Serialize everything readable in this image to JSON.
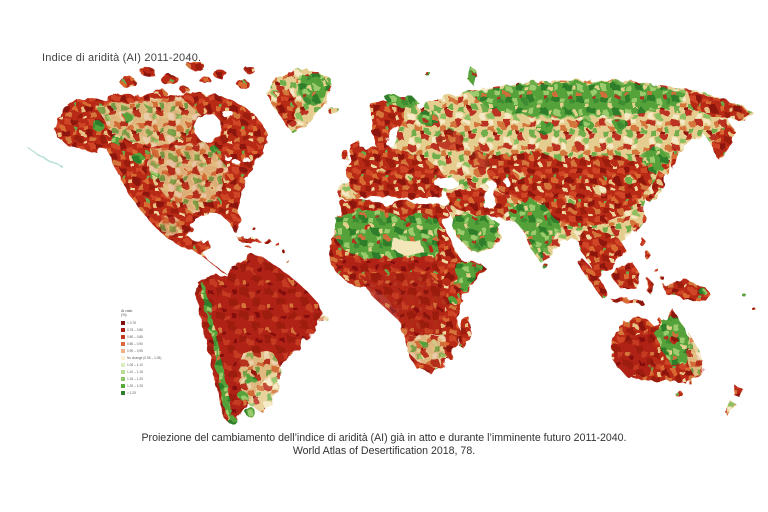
{
  "title": "Indice di aridità (AI) 2011-2040.",
  "caption": {
    "line1": "Proiezione del cambiamento dell’indice di aridità (AI) già in atto e durante l’imminente futuro 2011-2040.",
    "line2": "World Atlas of Desertification 2018, 78."
  },
  "legend": {
    "title_line1": "AI ratio",
    "title_line2": "(%)",
    "items": [
      {
        "label": "< 0.75",
        "color": "#7d120d"
      },
      {
        "label": "0.75 – 0.80",
        "color": "#a81c13"
      },
      {
        "label": "0.80 – 0.85",
        "color": "#c23a22"
      },
      {
        "label": "0.85 – 0.90",
        "color": "#dd6a3e"
      },
      {
        "label": "0.90 – 0.95",
        "color": "#efb183"
      },
      {
        "label": "No change (0.95 – 1.05)",
        "color": "#f8f0d2"
      },
      {
        "label": "1.05 – 1.10",
        "color": "#dcedc2"
      },
      {
        "label": "1.10 – 1.15",
        "color": "#b5dc8e"
      },
      {
        "label": "1.15 – 1.20",
        "color": "#8cc763"
      },
      {
        "label": "1.20 – 1.25",
        "color": "#5aaa3f"
      },
      {
        "label": "> 1.25",
        "color": "#2f7d2b"
      }
    ]
  },
  "map": {
    "type": "world-choropleth",
    "theme": "projected change in aridity index (red = drier, green = wetter)",
    "ocean_color": "#ffffff",
    "palette": {
      "dark_red": "#8c150c",
      "red": "#b92a17",
      "orange": "#d96a33",
      "tan": "#e5cd8f",
      "pale": "#f6eccb",
      "light_green": "#9ccb6e",
      "green": "#55a23a",
      "dark_green": "#2f7d2c"
    },
    "regions": [
      {
        "name": "north-america",
        "appearance": "dense red mottling, tan arctic band, scattered green flecks in Alaska and west Canada"
      },
      {
        "name": "greenland",
        "appearance": "red west and south, green east"
      },
      {
        "name": "south-america",
        "appearance": "solid dark-red Amazon basin, green Andes strip, mixed green-tan southern cone and Patagonia"
      },
      {
        "name": "europe",
        "appearance": "predominantly red with tan patches"
      },
      {
        "name": "northern-russia",
        "appearance": "broad green band across Siberia, red Chukotka and Kamchatka"
      },
      {
        "name": "central-asia",
        "appearance": "red patches over tan"
      },
      {
        "name": "middle-east",
        "appearance": "red Anatolia-Iran, green Arabian interior"
      },
      {
        "name": "africa",
        "appearance": "red north coast, green Sahara band with pale core, dark-red Sahel and central-southern Africa, green Horn"
      },
      {
        "name": "india",
        "appearance": "green subcontinent with red northern fringe"
      },
      {
        "name": "east-asia",
        "appearance": "large red Tibet-China mass, orange-tan east coast, red Japan"
      },
      {
        "name": "southeast-asia",
        "appearance": "red Indochina and Indonesian islands"
      },
      {
        "name": "australia",
        "appearance": "solid red west, green centre-east, mixed fringe, red Tasmania"
      },
      {
        "name": "new-zealand",
        "appearance": "small red-green slivers"
      }
    ]
  }
}
